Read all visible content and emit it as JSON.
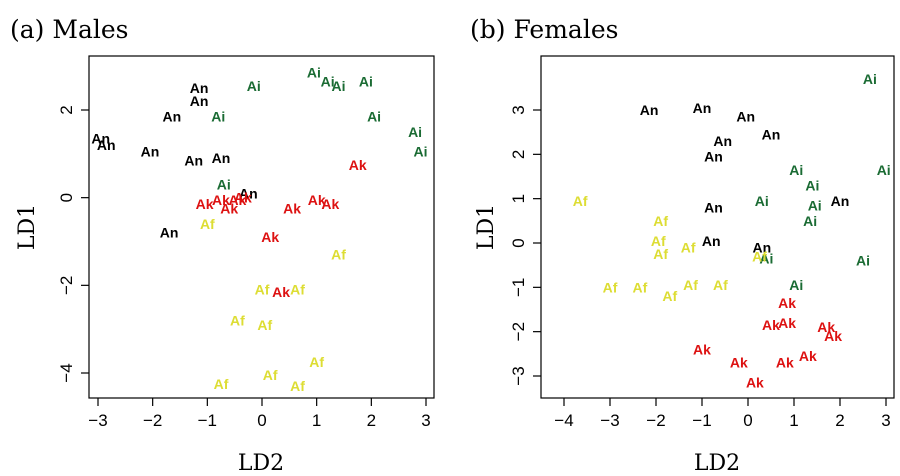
{
  "colors": {
    "An": "#000000",
    "Ai": "#1a6b33",
    "Ak": "#dd1111",
    "Af": "#dddd33"
  },
  "chart_data": [
    {
      "type": "scatter",
      "title": "(a) Males",
      "xlabel": "LD2",
      "ylabel": "LD1",
      "xlim": [
        -3.1,
        3.1
      ],
      "ylim": [
        -4.7,
        3.1
      ],
      "xticks": [
        -3,
        -2,
        -1,
        0,
        1,
        2,
        3
      ],
      "yticks": [
        -4,
        -2,
        0,
        2
      ],
      "points": [
        {
          "label": "An",
          "x": -1.15,
          "y": 2.5
        },
        {
          "label": "An",
          "x": -1.15,
          "y": 2.2
        },
        {
          "label": "An",
          "x": -1.65,
          "y": 1.85
        },
        {
          "label": "An",
          "x": -2.95,
          "y": 1.35
        },
        {
          "label": "An",
          "x": -2.85,
          "y": 1.2
        },
        {
          "label": "An",
          "x": -2.05,
          "y": 1.05
        },
        {
          "label": "An",
          "x": -1.25,
          "y": 0.85
        },
        {
          "label": "An",
          "x": -0.75,
          "y": 0.9
        },
        {
          "label": "An",
          "x": -0.25,
          "y": 0.1
        },
        {
          "label": "An",
          "x": -1.7,
          "y": -0.8
        },
        {
          "label": "Ai",
          "x": -0.15,
          "y": 2.55
        },
        {
          "label": "Ai",
          "x": -0.8,
          "y": 1.85
        },
        {
          "label": "Ai",
          "x": 0.95,
          "y": 2.85
        },
        {
          "label": "Ai",
          "x": 1.2,
          "y": 2.65
        },
        {
          "label": "Ai",
          "x": 1.4,
          "y": 2.55
        },
        {
          "label": "Ai",
          "x": 1.9,
          "y": 2.65
        },
        {
          "label": "Ai",
          "x": 2.05,
          "y": 1.85
        },
        {
          "label": "Ai",
          "x": 2.8,
          "y": 1.5
        },
        {
          "label": "Ai",
          "x": 2.9,
          "y": 1.05
        },
        {
          "label": "Ai",
          "x": -0.7,
          "y": 0.3
        },
        {
          "label": "Ak",
          "x": 1.75,
          "y": 0.75
        },
        {
          "label": "Ak",
          "x": -1.05,
          "y": -0.15
        },
        {
          "label": "Ak",
          "x": -0.75,
          "y": -0.05
        },
        {
          "label": "Ak",
          "x": -0.6,
          "y": -0.25
        },
        {
          "label": "Ak",
          "x": -0.45,
          "y": -0.05
        },
        {
          "label": "Ak",
          "x": -0.35,
          "y": 0.0
        },
        {
          "label": "Ak",
          "x": 0.55,
          "y": -0.25
        },
        {
          "label": "Ak",
          "x": 1.0,
          "y": -0.05
        },
        {
          "label": "Ak",
          "x": 1.25,
          "y": -0.15
        },
        {
          "label": "Ak",
          "x": 0.15,
          "y": -0.9
        },
        {
          "label": "Ak",
          "x": 0.35,
          "y": -2.15
        },
        {
          "label": "Af",
          "x": -1.0,
          "y": -0.6
        },
        {
          "label": "Af",
          "x": 1.4,
          "y": -1.3
        },
        {
          "label": "Af",
          "x": 0.0,
          "y": -2.1
        },
        {
          "label": "Af",
          "x": 0.65,
          "y": -2.1
        },
        {
          "label": "Af",
          "x": -0.45,
          "y": -2.8
        },
        {
          "label": "Af",
          "x": 0.05,
          "y": -2.9
        },
        {
          "label": "Af",
          "x": 1.0,
          "y": -3.75
        },
        {
          "label": "Af",
          "x": 0.15,
          "y": -4.05
        },
        {
          "label": "Af",
          "x": 0.65,
          "y": -4.3
        },
        {
          "label": "Af",
          "x": -0.75,
          "y": -4.25
        }
      ]
    },
    {
      "type": "scatter",
      "title": "(b) Females",
      "xlabel": "LD2",
      "ylabel": "LD1",
      "xlim": [
        -4.2,
        3.0
      ],
      "ylim": [
        -3.45,
        3.95
      ],
      "xticks": [
        -4,
        -3,
        -2,
        -1,
        0,
        1,
        2,
        3
      ],
      "yticks": [
        -3,
        -2,
        -1,
        0,
        1,
        2,
        3
      ],
      "points": [
        {
          "label": "Ai",
          "x": 2.65,
          "y": 3.7
        },
        {
          "label": "Ai",
          "x": 1.05,
          "y": 1.65
        },
        {
          "label": "Ai",
          "x": 2.95,
          "y": 1.65
        },
        {
          "label": "Ai",
          "x": 1.4,
          "y": 1.3
        },
        {
          "label": "Ai",
          "x": 0.3,
          "y": 0.95
        },
        {
          "label": "Ai",
          "x": 1.45,
          "y": 0.85
        },
        {
          "label": "Ai",
          "x": 1.35,
          "y": 0.5
        },
        {
          "label": "Ai",
          "x": 0.4,
          "y": -0.35
        },
        {
          "label": "Ai",
          "x": 2.5,
          "y": -0.4
        },
        {
          "label": "Ai",
          "x": 1.05,
          "y": -0.95
        },
        {
          "label": "An",
          "x": -2.15,
          "y": 3.0
        },
        {
          "label": "An",
          "x": -1.0,
          "y": 3.05
        },
        {
          "label": "An",
          "x": -0.05,
          "y": 2.85
        },
        {
          "label": "An",
          "x": 0.5,
          "y": 2.45
        },
        {
          "label": "An",
          "x": -0.55,
          "y": 2.3
        },
        {
          "label": "An",
          "x": -0.75,
          "y": 1.95
        },
        {
          "label": "An",
          "x": -0.75,
          "y": 0.8
        },
        {
          "label": "An",
          "x": 2.0,
          "y": 0.95
        },
        {
          "label": "An",
          "x": -0.8,
          "y": 0.05
        },
        {
          "label": "An",
          "x": 0.3,
          "y": -0.1
        },
        {
          "label": "Af",
          "x": -3.65,
          "y": 0.95
        },
        {
          "label": "Af",
          "x": -1.9,
          "y": 0.5
        },
        {
          "label": "Af",
          "x": -1.95,
          "y": 0.05
        },
        {
          "label": "Af",
          "x": -1.9,
          "y": -0.25
        },
        {
          "label": "Af",
          "x": -1.3,
          "y": -0.1
        },
        {
          "label": "Af",
          "x": 0.25,
          "y": -0.3
        },
        {
          "label": "Af",
          "x": -3.0,
          "y": -1.0
        },
        {
          "label": "Af",
          "x": -2.35,
          "y": -1.0
        },
        {
          "label": "Af",
          "x": -1.7,
          "y": -1.2
        },
        {
          "label": "Af",
          "x": -1.25,
          "y": -0.95
        },
        {
          "label": "Af",
          "x": -0.6,
          "y": -0.95
        },
        {
          "label": "Ak",
          "x": 0.85,
          "y": -1.35
        },
        {
          "label": "Ak",
          "x": 0.85,
          "y": -1.8
        },
        {
          "label": "Ak",
          "x": 0.5,
          "y": -1.85
        },
        {
          "label": "Ak",
          "x": 1.7,
          "y": -1.9
        },
        {
          "label": "Ak",
          "x": 1.85,
          "y": -2.1
        },
        {
          "label": "Ak",
          "x": -1.0,
          "y": -2.4
        },
        {
          "label": "Ak",
          "x": -0.2,
          "y": -2.7
        },
        {
          "label": "Ak",
          "x": 0.8,
          "y": -2.7
        },
        {
          "label": "Ak",
          "x": 1.3,
          "y": -2.55
        },
        {
          "label": "Ak",
          "x": 0.15,
          "y": -3.15
        }
      ]
    }
  ]
}
